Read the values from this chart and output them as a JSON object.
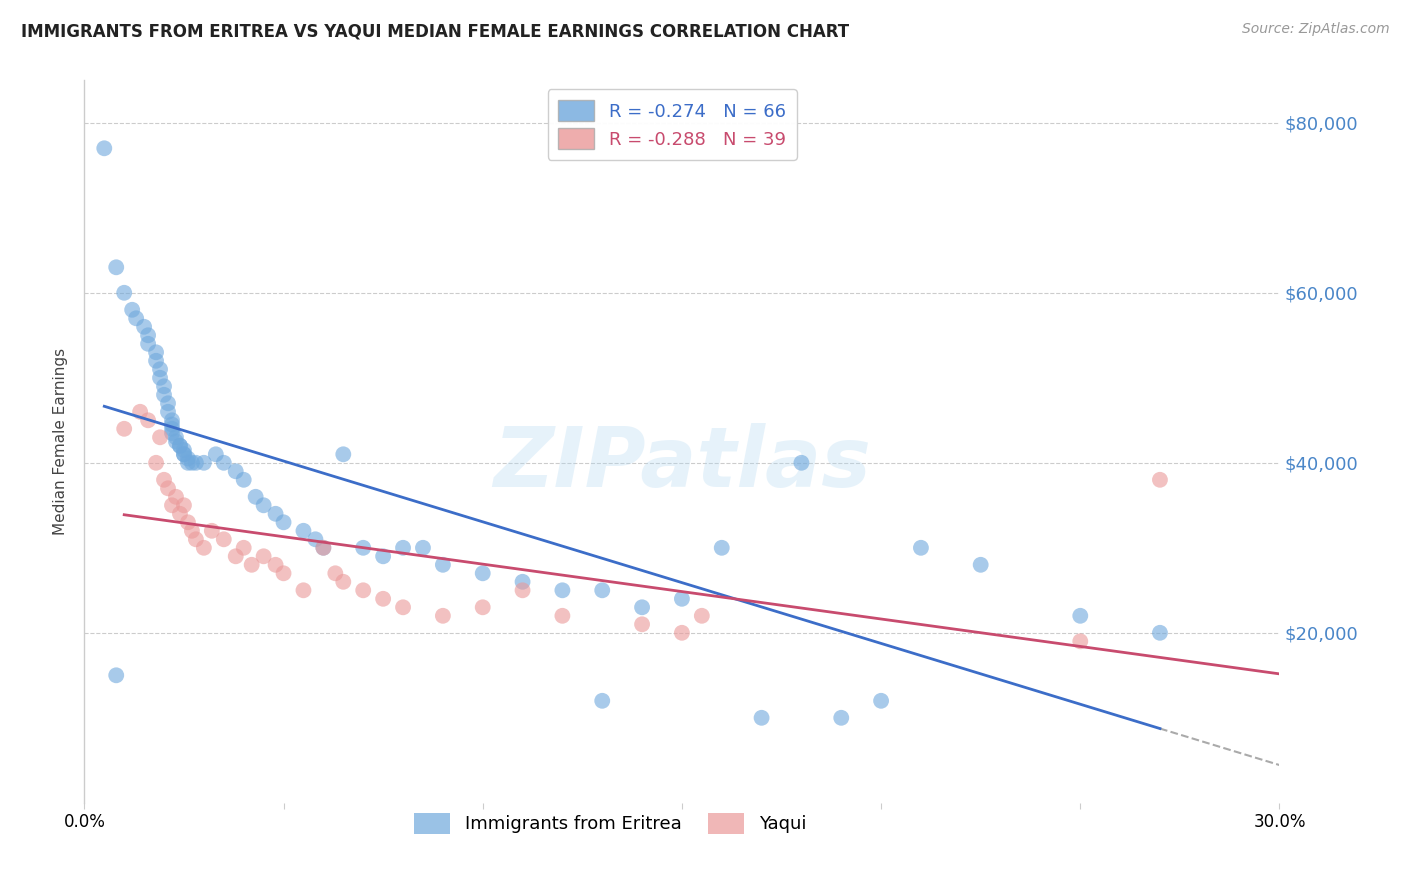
{
  "title": "IMMIGRANTS FROM ERITREA VS YAQUI MEDIAN FEMALE EARNINGS CORRELATION CHART",
  "source": "Source: ZipAtlas.com",
  "ylabel": "Median Female Earnings",
  "xlim": [
    0.0,
    0.3
  ],
  "ylim": [
    0,
    85000
  ],
  "yticks": [
    20000,
    40000,
    60000,
    80000
  ],
  "ytick_labels": [
    "$20,000",
    "$40,000",
    "$60,000",
    "$80,000"
  ],
  "xticks": [
    0.0,
    0.05,
    0.1,
    0.15,
    0.2,
    0.25,
    0.3
  ],
  "xtick_labels": [
    "0.0%",
    "",
    "",
    "",
    "",
    "",
    "30.0%"
  ],
  "series1_label": "Immigrants from Eritrea",
  "series2_label": "Yaqui",
  "series1_R": "-0.274",
  "series1_N": "66",
  "series2_R": "-0.288",
  "series2_N": "39",
  "series1_color": "#6fa8dc",
  "series2_color": "#ea9999",
  "line1_color": "#3c6dc8",
  "line2_color": "#c84b6e",
  "dash_color": "#aaaaaa",
  "watermark": "ZIPatlas",
  "background_color": "#ffffff",
  "series1_x": [
    0.005,
    0.008,
    0.01,
    0.012,
    0.013,
    0.015,
    0.016,
    0.016,
    0.018,
    0.018,
    0.019,
    0.019,
    0.02,
    0.02,
    0.021,
    0.021,
    0.022,
    0.022,
    0.022,
    0.022,
    0.023,
    0.023,
    0.024,
    0.024,
    0.025,
    0.025,
    0.025,
    0.026,
    0.026,
    0.027,
    0.028,
    0.03,
    0.033,
    0.035,
    0.038,
    0.04,
    0.043,
    0.045,
    0.048,
    0.05,
    0.055,
    0.058,
    0.06,
    0.065,
    0.07,
    0.075,
    0.08,
    0.085,
    0.09,
    0.1,
    0.11,
    0.12,
    0.13,
    0.14,
    0.15,
    0.16,
    0.17,
    0.18,
    0.19,
    0.2,
    0.21,
    0.225,
    0.25,
    0.27,
    0.008,
    0.13
  ],
  "series1_y": [
    77000,
    63000,
    60000,
    58000,
    57000,
    56000,
    55000,
    54000,
    53000,
    52000,
    51000,
    50000,
    49000,
    48000,
    47000,
    46000,
    45000,
    44500,
    44000,
    43500,
    43000,
    42500,
    42000,
    42000,
    41500,
    41000,
    41000,
    40500,
    40000,
    40000,
    40000,
    40000,
    41000,
    40000,
    39000,
    38000,
    36000,
    35000,
    34000,
    33000,
    32000,
    31000,
    30000,
    41000,
    30000,
    29000,
    30000,
    30000,
    28000,
    27000,
    26000,
    25000,
    25000,
    23000,
    24000,
    30000,
    10000,
    40000,
    10000,
    12000,
    30000,
    28000,
    22000,
    20000,
    15000,
    12000
  ],
  "series2_x": [
    0.01,
    0.014,
    0.016,
    0.018,
    0.019,
    0.02,
    0.021,
    0.022,
    0.023,
    0.024,
    0.025,
    0.026,
    0.027,
    0.028,
    0.03,
    0.032,
    0.035,
    0.038,
    0.04,
    0.042,
    0.045,
    0.048,
    0.05,
    0.055,
    0.06,
    0.063,
    0.065,
    0.07,
    0.075,
    0.08,
    0.09,
    0.1,
    0.11,
    0.12,
    0.14,
    0.15,
    0.155,
    0.25,
    0.27
  ],
  "series2_y": [
    44000,
    46000,
    45000,
    40000,
    43000,
    38000,
    37000,
    35000,
    36000,
    34000,
    35000,
    33000,
    32000,
    31000,
    30000,
    32000,
    31000,
    29000,
    30000,
    28000,
    29000,
    28000,
    27000,
    25000,
    30000,
    27000,
    26000,
    25000,
    24000,
    23000,
    22000,
    23000,
    25000,
    22000,
    21000,
    20000,
    22000,
    19000,
    38000
  ]
}
